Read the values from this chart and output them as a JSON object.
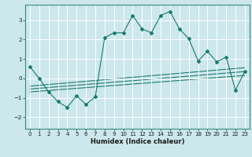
{
  "xlabel": "Humidex (Indice chaleur)",
  "ylabel": "",
  "background_color": "#cce8ec",
  "grid_color": "#ffffff",
  "line_color": "#1a7a6e",
  "xlim": [
    -0.5,
    23.5
  ],
  "ylim": [
    -2.6,
    3.8
  ],
  "yticks": [
    -2,
    -1,
    0,
    1,
    2,
    3
  ],
  "xticks": [
    0,
    1,
    2,
    3,
    4,
    5,
    6,
    7,
    8,
    9,
    10,
    11,
    12,
    13,
    14,
    15,
    16,
    17,
    18,
    19,
    20,
    21,
    22,
    23
  ],
  "data_x": [
    0,
    1,
    2,
    3,
    4,
    5,
    6,
    7,
    8,
    9,
    10,
    11,
    12,
    13,
    14,
    15,
    16,
    17,
    18,
    19,
    20,
    21,
    22,
    23
  ],
  "data_y": [
    0.6,
    0.0,
    -0.7,
    -1.2,
    -1.5,
    -0.9,
    -1.35,
    -0.95,
    2.1,
    2.35,
    2.35,
    3.25,
    2.55,
    2.35,
    3.25,
    3.45,
    2.55,
    2.05,
    0.9,
    1.4,
    0.85,
    1.1,
    -0.6,
    0.35
  ],
  "trend1_x": [
    0,
    23
  ],
  "trend1_y": [
    -0.7,
    0.15
  ],
  "trend2_x": [
    0,
    23
  ],
  "trend2_y": [
    -0.55,
    0.35
  ],
  "trend3_x": [
    0,
    23
  ],
  "trend3_y": [
    -0.4,
    0.55
  ]
}
